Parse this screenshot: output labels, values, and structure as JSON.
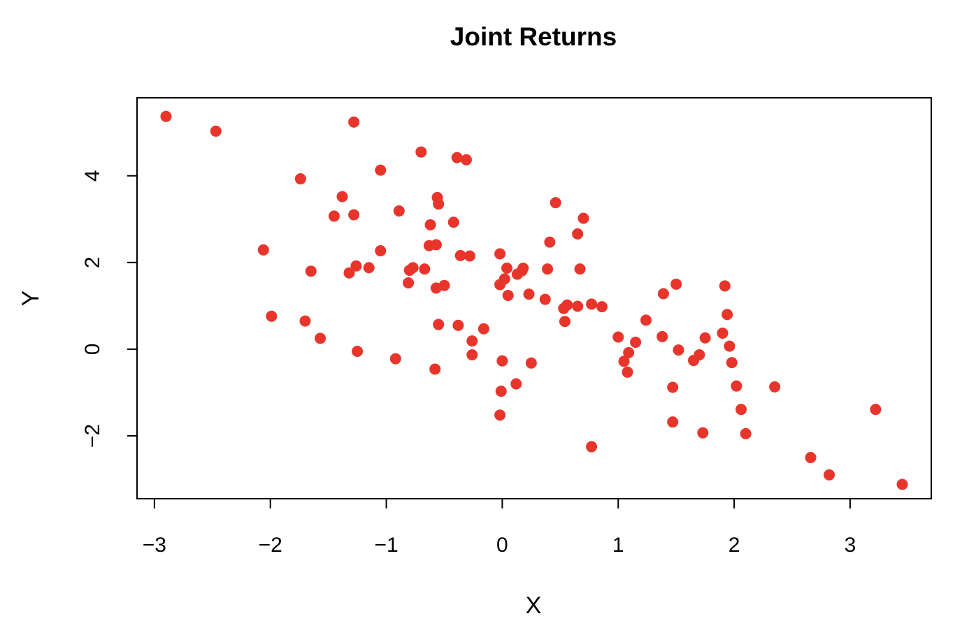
{
  "chart_data": {
    "type": "scatter",
    "title": "Joint Returns",
    "xlabel": "X",
    "ylabel": "Y",
    "xlim": [
      -3.15,
      3.7
    ],
    "ylim": [
      -3.45,
      5.8
    ],
    "x_ticks": [
      -3,
      -2,
      -1,
      0,
      1,
      2,
      3
    ],
    "x_tick_labels": [
      "−3",
      "−2",
      "−1",
      "0",
      "1",
      "2",
      "3"
    ],
    "y_ticks": [
      -2,
      0,
      2,
      4
    ],
    "y_tick_labels": [
      "−2",
      "0",
      "2",
      "4"
    ],
    "grid": false,
    "legend": "none",
    "point_color": "#e8352b",
    "series": [
      {
        "points": [
          [
            -2.9,
            5.37
          ],
          [
            -2.47,
            5.03
          ],
          [
            -1.28,
            5.24
          ],
          [
            -2.06,
            2.29
          ],
          [
            -1.99,
            0.76
          ],
          [
            -1.74,
            3.93
          ],
          [
            -1.7,
            0.65
          ],
          [
            -1.65,
            1.8
          ],
          [
            -1.57,
            0.25
          ],
          [
            -1.45,
            3.07
          ],
          [
            -1.38,
            3.52
          ],
          [
            -1.32,
            1.76
          ],
          [
            -1.28,
            3.1
          ],
          [
            -1.26,
            1.92
          ],
          [
            -1.25,
            -0.05
          ],
          [
            -1.15,
            1.88
          ],
          [
            -1.05,
            4.13
          ],
          [
            -1.05,
            2.27
          ],
          [
            -0.92,
            -0.22
          ],
          [
            -0.89,
            3.19
          ],
          [
            -0.81,
            1.53
          ],
          [
            -0.8,
            1.82
          ],
          [
            -0.77,
            1.88
          ],
          [
            -0.7,
            4.55
          ],
          [
            -0.67,
            1.85
          ],
          [
            -0.62,
            2.87
          ],
          [
            -0.63,
            2.39
          ],
          [
            -0.57,
            2.41
          ],
          [
            -0.57,
            1.41
          ],
          [
            -0.56,
            3.5
          ],
          [
            -0.55,
            3.35
          ],
          [
            -0.55,
            0.57
          ],
          [
            -0.58,
            -0.46
          ],
          [
            -0.5,
            1.47
          ],
          [
            -0.42,
            2.93
          ],
          [
            -0.39,
            4.42
          ],
          [
            -0.38,
            0.55
          ],
          [
            -0.36,
            2.16
          ],
          [
            -0.31,
            4.37
          ],
          [
            -0.28,
            2.15
          ],
          [
            -0.26,
            0.19
          ],
          [
            -0.26,
            -0.13
          ],
          [
            -0.16,
            0.47
          ],
          [
            -0.02,
            2.2
          ],
          [
            -0.02,
            1.49
          ],
          [
            -0.02,
            -1.52
          ],
          [
            -0.01,
            -0.97
          ],
          [
            0.0,
            -0.27
          ],
          [
            0.02,
            1.62
          ],
          [
            0.04,
            1.87
          ],
          [
            0.05,
            1.24
          ],
          [
            0.12,
            -0.8
          ],
          [
            0.13,
            1.73
          ],
          [
            0.17,
            1.81
          ],
          [
            0.18,
            1.87
          ],
          [
            0.23,
            1.27
          ],
          [
            0.25,
            -0.32
          ],
          [
            0.37,
            1.15
          ],
          [
            0.39,
            1.85
          ],
          [
            0.41,
            2.47
          ],
          [
            0.46,
            3.38
          ],
          [
            0.53,
            0.94
          ],
          [
            0.54,
            0.64
          ],
          [
            0.56,
            1.02
          ],
          [
            0.65,
            2.66
          ],
          [
            0.65,
            0.99
          ],
          [
            0.67,
            1.85
          ],
          [
            0.7,
            3.02
          ],
          [
            0.77,
            1.04
          ],
          [
            0.77,
            -2.25
          ],
          [
            0.86,
            0.98
          ],
          [
            1.0,
            0.28
          ],
          [
            1.05,
            -0.28
          ],
          [
            1.08,
            -0.53
          ],
          [
            1.09,
            -0.08
          ],
          [
            1.15,
            0.16
          ],
          [
            1.24,
            0.67
          ],
          [
            1.38,
            0.29
          ],
          [
            1.39,
            1.28
          ],
          [
            1.47,
            -0.88
          ],
          [
            1.47,
            -1.68
          ],
          [
            1.5,
            1.5
          ],
          [
            1.52,
            -0.02
          ],
          [
            1.65,
            -0.26
          ],
          [
            1.7,
            -0.13
          ],
          [
            1.73,
            -1.93
          ],
          [
            1.75,
            0.26
          ],
          [
            1.9,
            0.37
          ],
          [
            1.92,
            1.46
          ],
          [
            1.94,
            0.8
          ],
          [
            1.96,
            0.07
          ],
          [
            1.98,
            -0.31
          ],
          [
            2.02,
            -0.85
          ],
          [
            2.06,
            -1.39
          ],
          [
            2.1,
            -1.95
          ],
          [
            2.35,
            -0.87
          ],
          [
            2.66,
            -2.5
          ],
          [
            2.82,
            -2.9
          ],
          [
            3.22,
            -1.39
          ],
          [
            3.45,
            -3.12
          ]
        ]
      }
    ]
  }
}
